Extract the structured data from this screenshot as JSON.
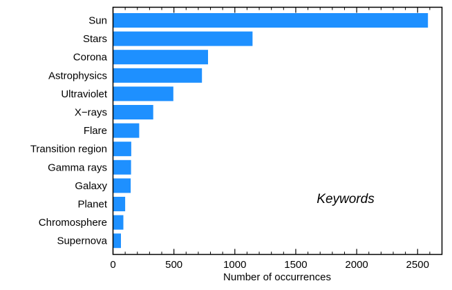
{
  "chart_data": {
    "type": "bar",
    "orientation": "horizontal",
    "categories": [
      "Sun",
      "Stars",
      "Corona",
      "Astrophysics",
      "Ultraviolet",
      "X−rays",
      "Flare",
      "Transition region",
      "Gamma rays",
      "Galaxy",
      "Planet",
      "Chromosphere",
      "Supernova"
    ],
    "values": [
      2585,
      1145,
      780,
      730,
      495,
      330,
      215,
      150,
      148,
      145,
      100,
      85,
      65
    ],
    "xlabel": "Number of occurrences",
    "ylabel": "",
    "xlim": [
      0,
      2700
    ],
    "xticks": [
      0,
      500,
      1000,
      1500,
      2000,
      2500
    ],
    "xtick_labels": [
      "0",
      "500",
      "1000",
      "1500",
      "2000",
      "2500"
    ],
    "annotation": "Keywords",
    "bar_color": "#1e90ff",
    "grid": false
  }
}
